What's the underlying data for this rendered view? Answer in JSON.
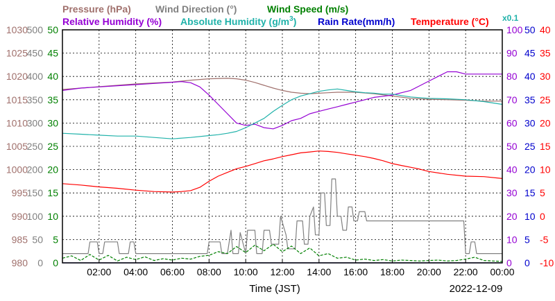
{
  "chart_data": {
    "type": "line",
    "legend_position": "top",
    "legend": {
      "pressure": {
        "text": "Pressure (hPa)",
        "color": "#a0706c"
      },
      "wind_direction": {
        "text": "Wind Direction (°)",
        "color": "#808080"
      },
      "wind_speed": {
        "text": "Wind Speed (m/s)",
        "color": "#008000"
      },
      "relative_humidity": {
        "text": "Relative Humidity (%)",
        "color": "#9400d3"
      },
      "absolute_humidity_prefix": "Absolute Humidity (g/m",
      "absolute_humidity_sup": "3",
      "absolute_humidity_suffix": ")",
      "absolute_humidity_color": "#20b2aa",
      "rain_rate": {
        "text": "Rain Rate(mm/h)",
        "color": "#0000cd"
      },
      "temperature": {
        "text": "Temperature (°C)",
        "color": "#ff0000"
      }
    },
    "absolute_humidity_scale_note": "x0.1",
    "xlabel": "Time (JST)",
    "date": "2022-12-09",
    "x_ticks": [
      "02:00",
      "04:00",
      "06:00",
      "08:00",
      "10:00",
      "12:00",
      "14:00",
      "16:00",
      "18:00",
      "20:00",
      "22:00",
      "00:00"
    ],
    "xlim_hours": [
      0,
      24
    ],
    "grid": true,
    "axes": [
      {
        "name": "pressure",
        "unit": "hPa",
        "color": "#a0706c",
        "ticks": [
          "980",
          "985",
          "990",
          "995",
          "1000",
          "1005",
          "1010",
          "1015",
          "1020",
          "1025",
          "1030"
        ],
        "range": [
          980,
          1030
        ]
      },
      {
        "name": "wind_direction",
        "unit": "°",
        "color": "#808080",
        "ticks": [
          "0",
          "50",
          "100",
          "150",
          "200",
          "250",
          "300",
          "350",
          "400",
          "450",
          "500"
        ],
        "range": [
          0,
          500
        ]
      },
      {
        "name": "wind_speed",
        "unit": "m/s",
        "color": "#008000",
        "ticks": [
          "0",
          "5",
          "10",
          "15",
          "20",
          "25",
          "30",
          "35",
          "40",
          "45",
          "50"
        ],
        "range": [
          0,
          50
        ]
      },
      {
        "name": "relative_humidity",
        "unit": "%",
        "color": "#9400d3",
        "ticks": [
          "0",
          "10",
          "20",
          "30",
          "40",
          "50",
          "60",
          "70",
          "80",
          "90",
          "100"
        ],
        "range": [
          0,
          100
        ]
      },
      {
        "name": "rain_rate",
        "unit": "mm/h",
        "color": "#0000cd",
        "ticks": [
          "0",
          "5",
          "10",
          "15",
          "20",
          "25",
          "30",
          "35",
          "40",
          "45",
          "50"
        ],
        "range": [
          0,
          50
        ]
      },
      {
        "name": "temperature",
        "unit": "°C",
        "color": "#ff0000",
        "ticks": [
          "-10",
          "-5",
          "0",
          "5",
          "10",
          "15",
          "20",
          "25",
          "30",
          "35",
          "40"
        ],
        "range": [
          -10,
          40
        ]
      }
    ],
    "series": [
      {
        "name": "Pressure (hPa)",
        "axis": "pressure",
        "color": "#a0706c",
        "style": "solid",
        "x": [
          0,
          1,
          2,
          3,
          4,
          5,
          6,
          7,
          8,
          9,
          9.5,
          10,
          10.5,
          11,
          11.5,
          12,
          12.5,
          13,
          13.5,
          14,
          14.5,
          15,
          16,
          17,
          18,
          19,
          20,
          21,
          22,
          23,
          24
        ],
        "y": [
          1017.2,
          1017.5,
          1017.8,
          1018.1,
          1018.4,
          1018.6,
          1018.8,
          1019.2,
          1019.5,
          1019.6,
          1019.5,
          1019.2,
          1018.7,
          1018.1,
          1017.5,
          1017.0,
          1016.6,
          1016.4,
          1016.3,
          1016.4,
          1016.5,
          1016.6,
          1016.6,
          1016.3,
          1015.8,
          1015.3,
          1015.1,
          1015.0,
          1014.9,
          1014.7,
          1014.7
        ]
      },
      {
        "name": "Wind Direction (°)",
        "axis": "wind_direction",
        "color": "#808080",
        "style": "solid",
        "x": [
          0,
          0.5,
          1.0,
          1.4,
          1.5,
          1.9,
          2.0,
          2.2,
          2.3,
          3.0,
          3.1,
          3.6,
          3.7,
          3.9,
          4.0,
          4.4,
          4.5,
          5.0,
          6.0,
          7.0,
          7.9,
          8.0,
          8.6,
          8.7,
          9.0,
          9.2,
          9.3,
          9.6,
          9.7,
          10.0,
          10.1,
          10.5,
          10.6,
          10.9,
          11.0,
          11.3,
          11.4,
          11.8,
          11.9,
          12.2,
          12.3,
          12.7,
          12.8,
          13.1,
          13.2,
          13.4,
          13.5,
          13.7,
          13.8,
          14.0,
          14.1,
          14.3,
          14.4,
          14.6,
          14.7,
          14.9,
          15.0,
          15.2,
          15.3,
          15.5,
          15.6,
          15.8,
          15.9,
          16.1,
          16.2,
          16.5,
          16.6,
          17.0,
          17.1,
          19.0,
          20.0,
          21.9,
          22.0,
          22.2,
          22.3,
          22.5,
          22.6,
          23.0,
          24.0
        ],
        "y": [
          20,
          20,
          20,
          20,
          45,
          45,
          20,
          20,
          45,
          45,
          20,
          20,
          45,
          45,
          20,
          20,
          20,
          20,
          20,
          20,
          20,
          45,
          45,
          20,
          20,
          70,
          20,
          20,
          65,
          20,
          70,
          70,
          20,
          20,
          70,
          70,
          40,
          40,
          100,
          60,
          30,
          30,
          90,
          90,
          40,
          40,
          100,
          120,
          60,
          60,
          150,
          150,
          80,
          80,
          180,
          180,
          100,
          100,
          70,
          70,
          120,
          120,
          90,
          90,
          110,
          110,
          90,
          90,
          90,
          90,
          90,
          90,
          20,
          20,
          45,
          45,
          20,
          20,
          20
        ]
      },
      {
        "name": "Wind Speed (m/s)",
        "axis": "wind_speed",
        "color": "#008000",
        "style": "dashed",
        "x": [
          0,
          0.5,
          1,
          1.5,
          2,
          2.5,
          3,
          3.5,
          4,
          4.5,
          5,
          5.5,
          6,
          6.5,
          7,
          7.5,
          8,
          8.5,
          9,
          9.5,
          10,
          10.5,
          11,
          11.5,
          12,
          12.5,
          13,
          13.5,
          14,
          14.5,
          15,
          15.5,
          16,
          16.5,
          17,
          17.5,
          18,
          18.5,
          19,
          19.5,
          20,
          20.5,
          21,
          21.5,
          22,
          22.5,
          23,
          23.5,
          24
        ],
        "y": [
          1,
          1.5,
          0.5,
          1.8,
          0.6,
          1.6,
          0.4,
          1.2,
          0.7,
          1.3,
          0.5,
          0.9,
          0.6,
          1.0,
          0.8,
          1.4,
          1.6,
          2.4,
          2.0,
          3.5,
          2.2,
          3.8,
          2.6,
          4.0,
          2.4,
          3.6,
          2.0,
          3.2,
          1.5,
          2.0,
          1.0,
          1.2,
          0.6,
          0.8,
          0.5,
          0.7,
          0.4,
          0.6,
          0.5,
          0.4,
          0.5,
          0.6,
          0.4,
          0.5,
          0.8,
          1.2,
          0.5,
          0.4,
          0.3
        ]
      },
      {
        "name": "Relative Humidity (%)",
        "axis": "relative_humidity",
        "color": "#9400d3",
        "style": "solid",
        "x": [
          0,
          1,
          2,
          3,
          4,
          5,
          6,
          6.5,
          7,
          7.5,
          8,
          8.5,
          9,
          9.5,
          10,
          10.5,
          11,
          11.5,
          12,
          12.5,
          13,
          13.5,
          14,
          14.5,
          15,
          15.5,
          16,
          16.5,
          17,
          17.5,
          18,
          18.5,
          19,
          19.5,
          20,
          20.5,
          21,
          21.5,
          22,
          23,
          24
        ],
        "y": [
          74,
          75,
          75.5,
          76,
          76.5,
          77,
          77.5,
          77.8,
          77.3,
          75.5,
          72,
          68,
          64,
          60,
          59,
          59.5,
          58,
          57.5,
          59,
          61,
          62,
          64,
          65,
          66,
          67,
          68,
          69,
          70,
          71,
          71.5,
          72,
          73,
          74,
          76,
          78,
          80,
          82,
          82,
          81,
          81,
          81
        ]
      },
      {
        "name": "Absolute Humidity (g/m3)",
        "axis": "wind_speed",
        "color": "#20b2aa",
        "style": "solid",
        "x": [
          0,
          1,
          2,
          3,
          4,
          5,
          6,
          7,
          8,
          8.5,
          9,
          9.5,
          10,
          10.5,
          11,
          11.5,
          12,
          12.5,
          13,
          13.5,
          14,
          14.5,
          15,
          15.5,
          16,
          16.5,
          17,
          17.5,
          18,
          18.5,
          19,
          20,
          21,
          22,
          23,
          24
        ],
        "y": [
          27.8,
          27.6,
          27.4,
          27.2,
          27.2,
          26.9,
          26.6,
          26.9,
          27.3,
          27.5,
          27.8,
          28.2,
          29.0,
          30.0,
          31.0,
          32.5,
          33.8,
          35.0,
          35.8,
          36.3,
          36.8,
          37.1,
          37.3,
          37.0,
          36.7,
          36.5,
          36.4,
          36.2,
          36.2,
          35.9,
          35.6,
          35.3,
          35.2,
          35.0,
          34.6,
          34.0
        ]
      },
      {
        "name": "Rain Rate(mm/h)",
        "axis": "rain_rate",
        "color": "#0000cd",
        "style": "solid",
        "x": [
          0,
          24
        ],
        "y": [
          0,
          0
        ]
      },
      {
        "name": "Temperature (°C)",
        "axis": "temperature",
        "color": "#ff0000",
        "style": "solid",
        "x": [
          0,
          1,
          2,
          3,
          4,
          5,
          6,
          6.5,
          7,
          7.5,
          8,
          8.5,
          9,
          9.5,
          10,
          10.5,
          11,
          11.5,
          12,
          12.5,
          13,
          13.5,
          14,
          14.5,
          15,
          15.5,
          16,
          16.5,
          17,
          17.5,
          18,
          18.5,
          19,
          19.5,
          20,
          21,
          22,
          23,
          24
        ],
        "y": [
          7.0,
          6.7,
          6.3,
          6.0,
          5.6,
          5.3,
          5.2,
          5.3,
          5.5,
          6.2,
          7.5,
          8.6,
          9.4,
          10.2,
          10.7,
          11.3,
          11.9,
          12.3,
          12.8,
          13.2,
          13.6,
          13.8,
          14.0,
          13.9,
          13.7,
          13.4,
          13.1,
          12.8,
          12.4,
          11.9,
          11.3,
          10.9,
          10.5,
          10.1,
          9.6,
          9.0,
          8.6,
          8.5,
          8.1
        ]
      }
    ]
  }
}
